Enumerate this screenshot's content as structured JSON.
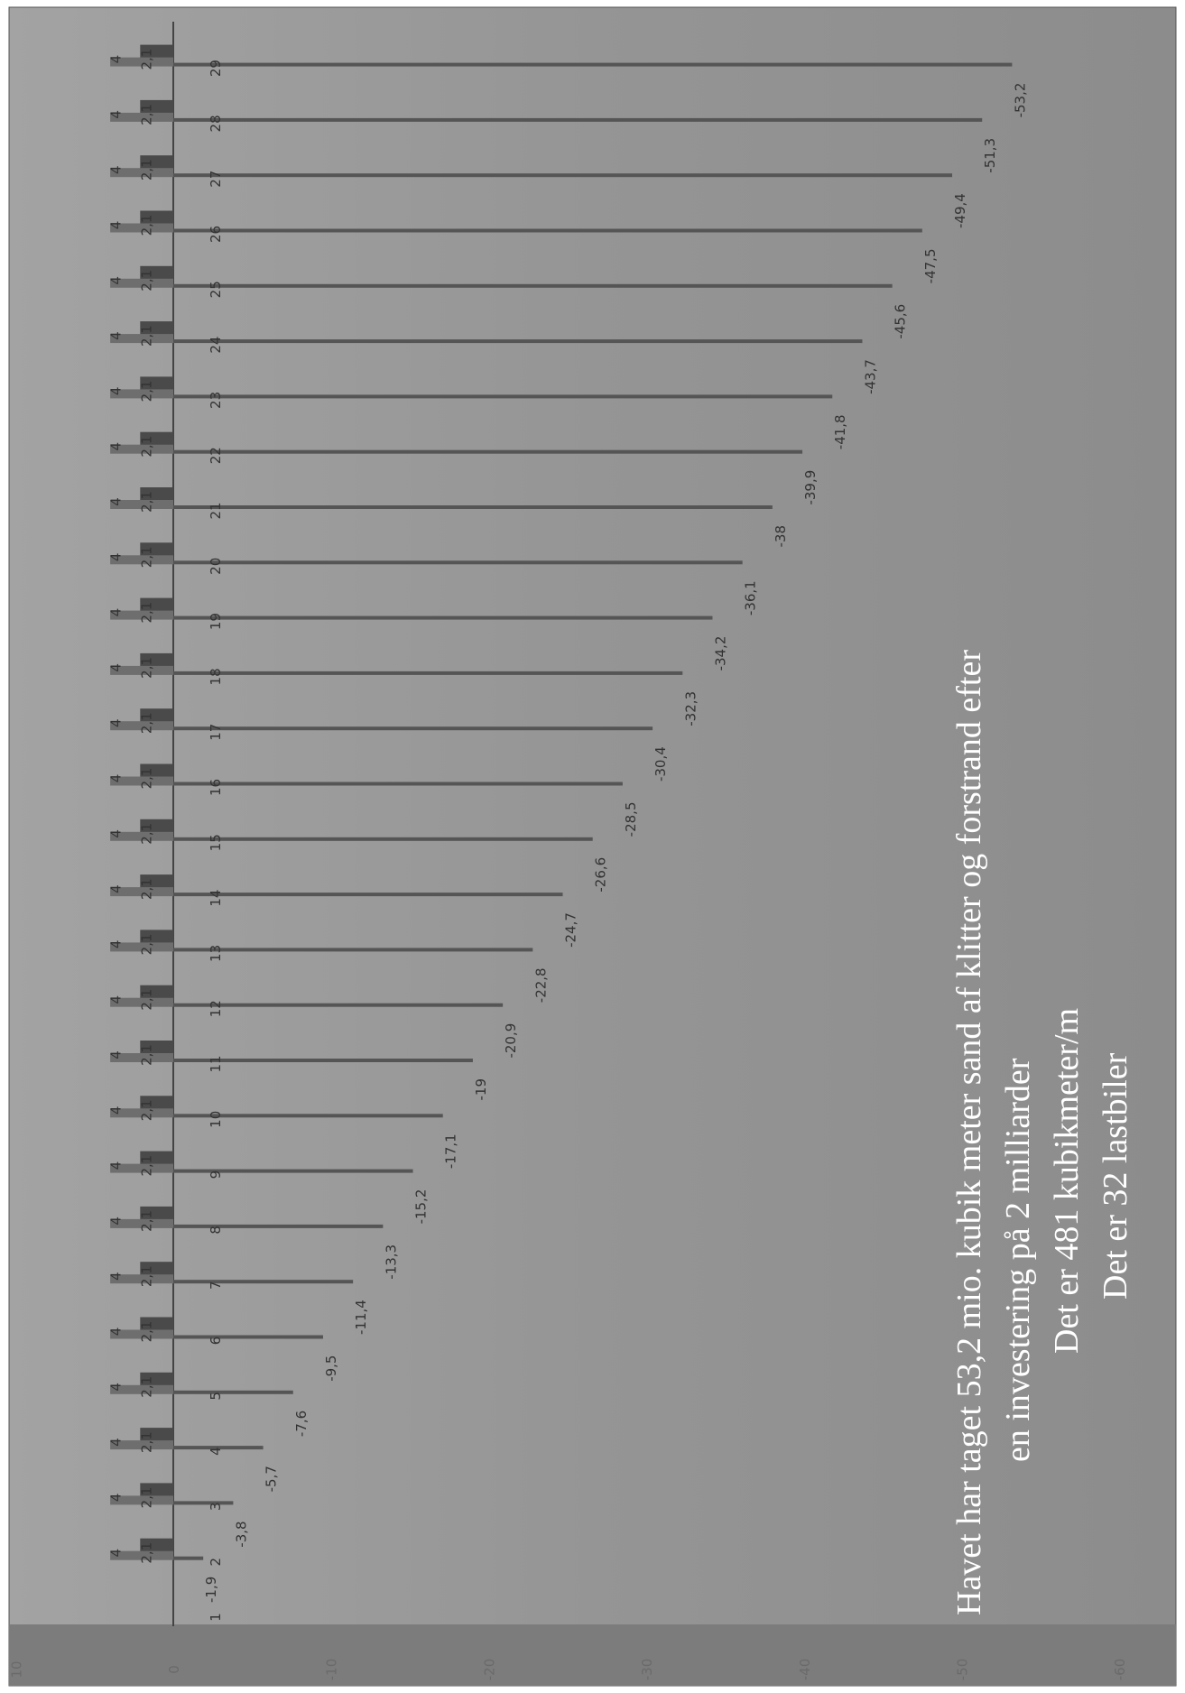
{
  "chart_data": {
    "type": "bar",
    "orientation": "rotated-90-cw",
    "categories": [
      "1",
      "2",
      "3",
      "4",
      "5",
      "6",
      "7",
      "8",
      "9",
      "10",
      "11",
      "12",
      "13",
      "14",
      "15",
      "16",
      "17",
      "18",
      "19",
      "20",
      "21",
      "22",
      "23",
      "24",
      "25",
      "26",
      "27",
      "28",
      "29"
    ],
    "series": [
      {
        "values": [
          0,
          -1.9,
          -3.8,
          -5.7,
          -7.6,
          -9.5,
          -11.4,
          -13.3,
          -15.2,
          -17.1,
          -19,
          -20.9,
          -22.8,
          -24.7,
          -26.6,
          -28.5,
          -30.4,
          -32.3,
          -34.2,
          -36.1,
          -38,
          -39.9,
          -41.8,
          -43.7,
          -45.6,
          -47.5,
          -49.4,
          -51.3,
          -53.2
        ],
        "labels": [
          "",
          "-1,9",
          "-3,8",
          "-5,7",
          "-7,6",
          "-9,5",
          "-11,4",
          "-13,3",
          "-15,2",
          "-17,1",
          "-19",
          "-20,9",
          "-22,8",
          "-24,7",
          "-26,6",
          "-28,5",
          "-30,4",
          "-32,3",
          "-34,2",
          "-36,1",
          "-38",
          "-39,9",
          "-41,8",
          "-43,7",
          "-45,6",
          "-47,5",
          "-49,4",
          "-51,3",
          "-53,2"
        ],
        "color": "#555555"
      },
      {
        "values": [
          2.1,
          2.1,
          2.1,
          2.1,
          2.1,
          2.1,
          2.1,
          2.1,
          2.1,
          2.1,
          2.1,
          2.1,
          2.1,
          2.1,
          2.1,
          2.1,
          2.1,
          2.1,
          2.1,
          2.1,
          2.1,
          2.1,
          2.1,
          2.1,
          2.1,
          2.1,
          2.1,
          2.1,
          2.1
        ],
        "labels": [
          "",
          "2,1",
          "2,1",
          "2,1",
          "2,1",
          "2,1",
          "2,1",
          "2,1",
          "2,1",
          "2,1",
          "2,1",
          "2,1",
          "2,1",
          "2,1",
          "2,1",
          "2,1",
          "2,1",
          "2,1",
          "2,1",
          "2,1",
          "2,1",
          "2,1",
          "2,1",
          "2,1",
          "2,1",
          "2,1",
          "2,1",
          "2,1",
          "2,1"
        ],
        "color": "#4a4a4a"
      },
      {
        "values": [
          4,
          4,
          4,
          4,
          4,
          4,
          4,
          4,
          4,
          4,
          4,
          4,
          4,
          4,
          4,
          4,
          4,
          4,
          4,
          4,
          4,
          4,
          4,
          4,
          4,
          4,
          4,
          4,
          4
        ],
        "labels": [
          "",
          "4",
          "4",
          "4",
          "4",
          "4",
          "4",
          "4",
          "4",
          "4",
          "4",
          "4",
          "4",
          "4",
          "4",
          "4",
          "4",
          "4",
          "4",
          "4",
          "4",
          "4",
          "4",
          "4",
          "4",
          "4",
          "4",
          "4",
          "4"
        ],
        "color": "#6e6e6e"
      }
    ],
    "y_ticks": [
      "10",
      "0",
      "-10",
      "-20",
      "-30",
      "-40",
      "-50",
      "-60"
    ],
    "ylim": [
      -60,
      10
    ],
    "grid": false,
    "annotations": [
      "Havet har taget 53,2 mio. kubik meter  sand af klitter og forstrand efter",
      "en investering på 2 milliarder",
      "Det er 481 kubikmeter/m",
      "Det er 32 lastbiler"
    ],
    "colors": {
      "background": "#8f8f8f",
      "axis_strip": "#7a7a7a",
      "note_text": "#ffffff"
    }
  }
}
